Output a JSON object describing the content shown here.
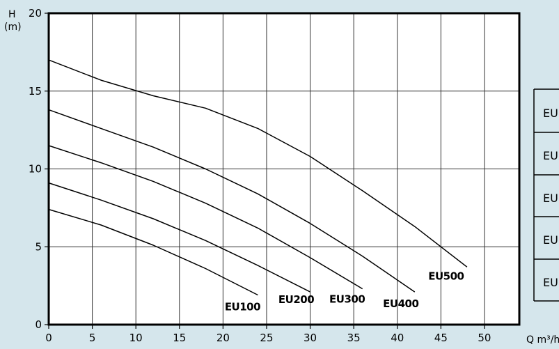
{
  "chart_data": {
    "type": "line",
    "title": "",
    "xlabel": "Q m³/h",
    "ylabel": "H (m)",
    "ylabel_line1": "H",
    "ylabel_line2": "(m)",
    "xlim": [
      0,
      54
    ],
    "ylim": [
      0,
      20
    ],
    "xticks": [
      0,
      5,
      10,
      15,
      20,
      25,
      30,
      35,
      40,
      45,
      50
    ],
    "yticks": [
      0,
      5,
      10,
      15,
      20
    ],
    "grid": true,
    "background": "#d5e6ec",
    "plot_background": "#ffffff",
    "line_color": "#000000",
    "series": [
      {
        "name": "EU100",
        "x": [
          0,
          6,
          12,
          18,
          24
        ],
        "y": [
          7.4,
          6.4,
          5.1,
          3.6,
          1.9
        ]
      },
      {
        "name": "EU200",
        "x": [
          0,
          6,
          12,
          18,
          24,
          30
        ],
        "y": [
          9.1,
          8.0,
          6.8,
          5.4,
          3.8,
          2.1
        ]
      },
      {
        "name": "EU300",
        "x": [
          0,
          6,
          12,
          18,
          24,
          30,
          36
        ],
        "y": [
          11.5,
          10.4,
          9.2,
          7.8,
          6.2,
          4.3,
          2.3
        ]
      },
      {
        "name": "EU400",
        "x": [
          0,
          6,
          12,
          18,
          24,
          30,
          36,
          42
        ],
        "y": [
          13.8,
          12.6,
          11.4,
          10.0,
          8.4,
          6.5,
          4.4,
          2.1
        ]
      },
      {
        "name": "EU500",
        "x": [
          0,
          6,
          12,
          18,
          24,
          30,
          36,
          42,
          48
        ],
        "y": [
          17.0,
          15.7,
          14.7,
          13.9,
          12.6,
          10.8,
          8.6,
          6.3,
          3.7
        ]
      }
    ],
    "legend_entries": [
      "EU",
      "EU",
      "EU",
      "EU",
      "EU"
    ]
  }
}
